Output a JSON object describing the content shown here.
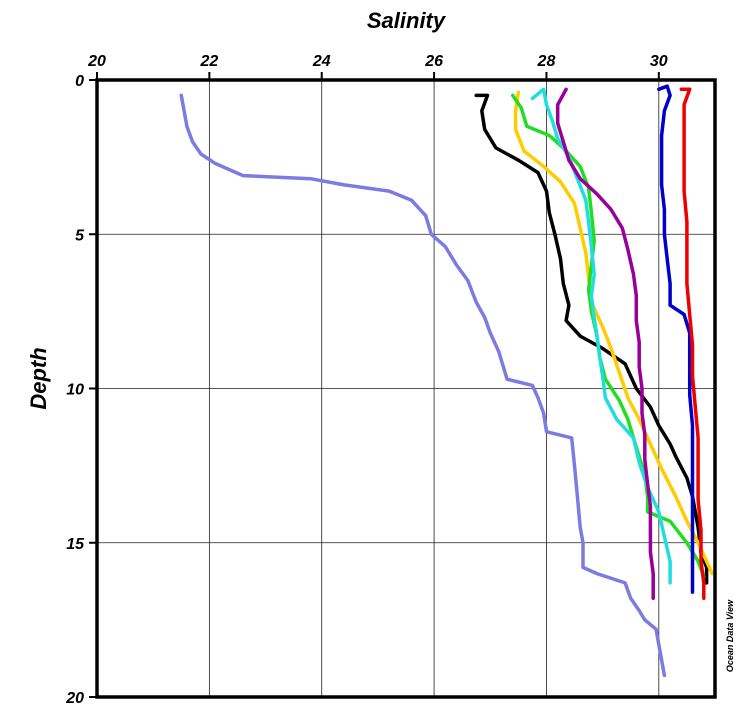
{
  "chart_data": {
    "type": "line",
    "title": "",
    "xlabel": "Salinity",
    "ylabel": "Depth",
    "xlim": [
      20,
      31
    ],
    "ylim": [
      0,
      20
    ],
    "x_axis_position": "top",
    "y_axis_inverted": true,
    "grid": true,
    "x_ticks": [
      20,
      22,
      24,
      26,
      28,
      30
    ],
    "y_ticks": [
      0,
      5,
      10,
      15,
      20
    ],
    "credit": "Ocean Data View",
    "series": [
      {
        "color": "#7b7be0",
        "points": [
          [
            21.5,
            0.5
          ],
          [
            21.55,
            1.0
          ],
          [
            21.6,
            1.5
          ],
          [
            21.7,
            2.0
          ],
          [
            21.85,
            2.4
          ],
          [
            22.1,
            2.7
          ],
          [
            22.35,
            2.9
          ],
          [
            22.6,
            3.1
          ],
          [
            23.8,
            3.2
          ],
          [
            24.4,
            3.4
          ],
          [
            25.2,
            3.6
          ],
          [
            25.6,
            3.9
          ],
          [
            25.85,
            4.4
          ],
          [
            25.95,
            5.0
          ],
          [
            26.2,
            5.4
          ],
          [
            26.4,
            6.0
          ],
          [
            26.6,
            6.5
          ],
          [
            26.75,
            7.2
          ],
          [
            26.9,
            7.7
          ],
          [
            27.0,
            8.2
          ],
          [
            27.15,
            8.8
          ],
          [
            27.3,
            9.7
          ],
          [
            27.75,
            9.9
          ],
          [
            27.85,
            10.3
          ],
          [
            27.95,
            10.8
          ],
          [
            28.0,
            11.4
          ],
          [
            28.45,
            11.6
          ],
          [
            28.5,
            12.5
          ],
          [
            28.55,
            13.5
          ],
          [
            28.6,
            14.5
          ],
          [
            28.65,
            15.0
          ],
          [
            28.65,
            15.8
          ],
          [
            28.9,
            16.0
          ],
          [
            29.4,
            16.3
          ],
          [
            29.5,
            16.8
          ],
          [
            29.65,
            17.2
          ],
          [
            29.75,
            17.5
          ],
          [
            29.95,
            17.8
          ],
          [
            30.0,
            18.3
          ],
          [
            30.05,
            18.8
          ],
          [
            30.1,
            19.3
          ]
        ]
      },
      {
        "color": "#000000",
        "points": [
          [
            26.75,
            0.5
          ],
          [
            26.95,
            0.5
          ],
          [
            26.85,
            1.0
          ],
          [
            26.9,
            1.6
          ],
          [
            27.1,
            2.2
          ],
          [
            27.5,
            2.6
          ],
          [
            27.85,
            3.0
          ],
          [
            28.0,
            3.6
          ],
          [
            28.05,
            4.3
          ],
          [
            28.15,
            5.0
          ],
          [
            28.25,
            5.8
          ],
          [
            28.3,
            6.6
          ],
          [
            28.4,
            7.3
          ],
          [
            28.35,
            7.8
          ],
          [
            28.6,
            8.3
          ],
          [
            29.0,
            8.7
          ],
          [
            29.4,
            9.2
          ],
          [
            29.6,
            10.0
          ],
          [
            29.85,
            10.6
          ],
          [
            30.0,
            11.2
          ],
          [
            30.2,
            11.8
          ],
          [
            30.3,
            12.2
          ],
          [
            30.5,
            12.9
          ],
          [
            30.6,
            13.5
          ],
          [
            30.7,
            14.5
          ],
          [
            30.75,
            15.3
          ],
          [
            30.85,
            15.8
          ],
          [
            30.85,
            16.3
          ]
        ]
      },
      {
        "color": "#ffcc00",
        "points": [
          [
            27.5,
            0.4
          ],
          [
            27.45,
            1.0
          ],
          [
            27.45,
            1.6
          ],
          [
            27.6,
            2.3
          ],
          [
            27.95,
            2.8
          ],
          [
            28.25,
            3.3
          ],
          [
            28.5,
            4.0
          ],
          [
            28.6,
            4.8
          ],
          [
            28.7,
            5.6
          ],
          [
            28.75,
            6.4
          ],
          [
            28.8,
            7.2
          ],
          [
            29.0,
            8.0
          ],
          [
            29.15,
            8.7
          ],
          [
            29.3,
            9.5
          ],
          [
            29.45,
            10.3
          ],
          [
            29.65,
            11.0
          ],
          [
            29.85,
            11.8
          ],
          [
            30.05,
            12.6
          ],
          [
            30.3,
            13.5
          ],
          [
            30.5,
            14.3
          ],
          [
            30.7,
            15.0
          ],
          [
            30.85,
            15.6
          ],
          [
            30.95,
            16.0
          ]
        ]
      },
      {
        "color": "#22dd22",
        "points": [
          [
            27.4,
            0.5
          ],
          [
            27.55,
            0.9
          ],
          [
            27.65,
            1.5
          ],
          [
            28.05,
            1.8
          ],
          [
            28.3,
            2.2
          ],
          [
            28.6,
            2.8
          ],
          [
            28.75,
            3.5
          ],
          [
            28.8,
            4.3
          ],
          [
            28.85,
            5.2
          ],
          [
            28.8,
            6.0
          ],
          [
            28.75,
            6.8
          ],
          [
            28.8,
            7.5
          ],
          [
            28.9,
            8.3
          ],
          [
            28.95,
            9.0
          ],
          [
            29.05,
            9.7
          ],
          [
            29.3,
            10.4
          ],
          [
            29.45,
            11.0
          ],
          [
            29.55,
            11.6
          ],
          [
            29.65,
            12.2
          ],
          [
            29.75,
            12.8
          ],
          [
            29.8,
            13.5
          ],
          [
            29.8,
            14.0
          ],
          [
            30.2,
            14.3
          ],
          [
            30.5,
            15.0
          ],
          [
            30.7,
            15.6
          ],
          [
            30.8,
            16.1
          ]
        ]
      },
      {
        "color": "#22dddd",
        "points": [
          [
            27.75,
            0.6
          ],
          [
            27.95,
            0.3
          ],
          [
            28.0,
            0.8
          ],
          [
            28.1,
            1.3
          ],
          [
            28.2,
            1.9
          ],
          [
            28.4,
            2.5
          ],
          [
            28.55,
            3.2
          ],
          [
            28.7,
            3.9
          ],
          [
            28.75,
            4.6
          ],
          [
            28.8,
            5.4
          ],
          [
            28.85,
            6.3
          ],
          [
            28.8,
            7.0
          ],
          [
            28.85,
            7.7
          ],
          [
            28.9,
            8.3
          ],
          [
            28.95,
            9.0
          ],
          [
            29.0,
            9.6
          ],
          [
            29.05,
            10.3
          ],
          [
            29.25,
            11.0
          ],
          [
            29.55,
            11.6
          ],
          [
            29.65,
            12.4
          ],
          [
            29.8,
            13.2
          ],
          [
            30.0,
            14.0
          ],
          [
            30.1,
            14.8
          ],
          [
            30.2,
            15.6
          ],
          [
            30.2,
            16.3
          ]
        ]
      },
      {
        "color": "#990099",
        "points": [
          [
            28.35,
            0.3
          ],
          [
            28.2,
            0.8
          ],
          [
            28.2,
            1.4
          ],
          [
            28.3,
            2.0
          ],
          [
            28.4,
            2.6
          ],
          [
            28.6,
            3.2
          ],
          [
            28.9,
            3.7
          ],
          [
            29.15,
            4.2
          ],
          [
            29.35,
            4.8
          ],
          [
            29.45,
            5.5
          ],
          [
            29.55,
            6.3
          ],
          [
            29.6,
            7.0
          ],
          [
            29.6,
            7.8
          ],
          [
            29.65,
            8.5
          ],
          [
            29.65,
            9.3
          ],
          [
            29.7,
            10.0
          ],
          [
            29.7,
            10.8
          ],
          [
            29.75,
            11.5
          ],
          [
            29.75,
            12.3
          ],
          [
            29.8,
            13.1
          ],
          [
            29.85,
            13.8
          ],
          [
            29.85,
            14.6
          ],
          [
            29.85,
            15.3
          ],
          [
            29.9,
            16.0
          ],
          [
            29.9,
            16.8
          ]
        ]
      },
      {
        "color": "#0000cc",
        "points": [
          [
            30.0,
            0.3
          ],
          [
            30.15,
            0.2
          ],
          [
            30.2,
            0.5
          ],
          [
            30.1,
            1.0
          ],
          [
            30.05,
            1.8
          ],
          [
            30.05,
            2.6
          ],
          [
            30.05,
            3.4
          ],
          [
            30.1,
            4.2
          ],
          [
            30.1,
            5.0
          ],
          [
            30.15,
            5.8
          ],
          [
            30.2,
            6.6
          ],
          [
            30.2,
            7.3
          ],
          [
            30.45,
            7.6
          ],
          [
            30.55,
            8.2
          ],
          [
            30.55,
            9.2
          ],
          [
            30.55,
            10.2
          ],
          [
            30.6,
            11.2
          ],
          [
            30.6,
            12.2
          ],
          [
            30.6,
            13.2
          ],
          [
            30.6,
            14.2
          ],
          [
            30.6,
            15.2
          ],
          [
            30.6,
            16.0
          ],
          [
            30.6,
            16.6
          ]
        ]
      },
      {
        "color": "#ee0000",
        "points": [
          [
            30.4,
            0.3
          ],
          [
            30.55,
            0.3
          ],
          [
            30.45,
            0.8
          ],
          [
            30.45,
            1.6
          ],
          [
            30.45,
            2.6
          ],
          [
            30.45,
            3.6
          ],
          [
            30.5,
            4.6
          ],
          [
            30.5,
            5.6
          ],
          [
            30.5,
            6.6
          ],
          [
            30.55,
            7.6
          ],
          [
            30.6,
            8.6
          ],
          [
            30.6,
            9.6
          ],
          [
            30.65,
            10.6
          ],
          [
            30.7,
            11.6
          ],
          [
            30.7,
            12.6
          ],
          [
            30.7,
            13.6
          ],
          [
            30.75,
            14.6
          ],
          [
            30.75,
            15.6
          ],
          [
            30.8,
            16.3
          ],
          [
            30.8,
            16.8
          ]
        ]
      }
    ]
  }
}
